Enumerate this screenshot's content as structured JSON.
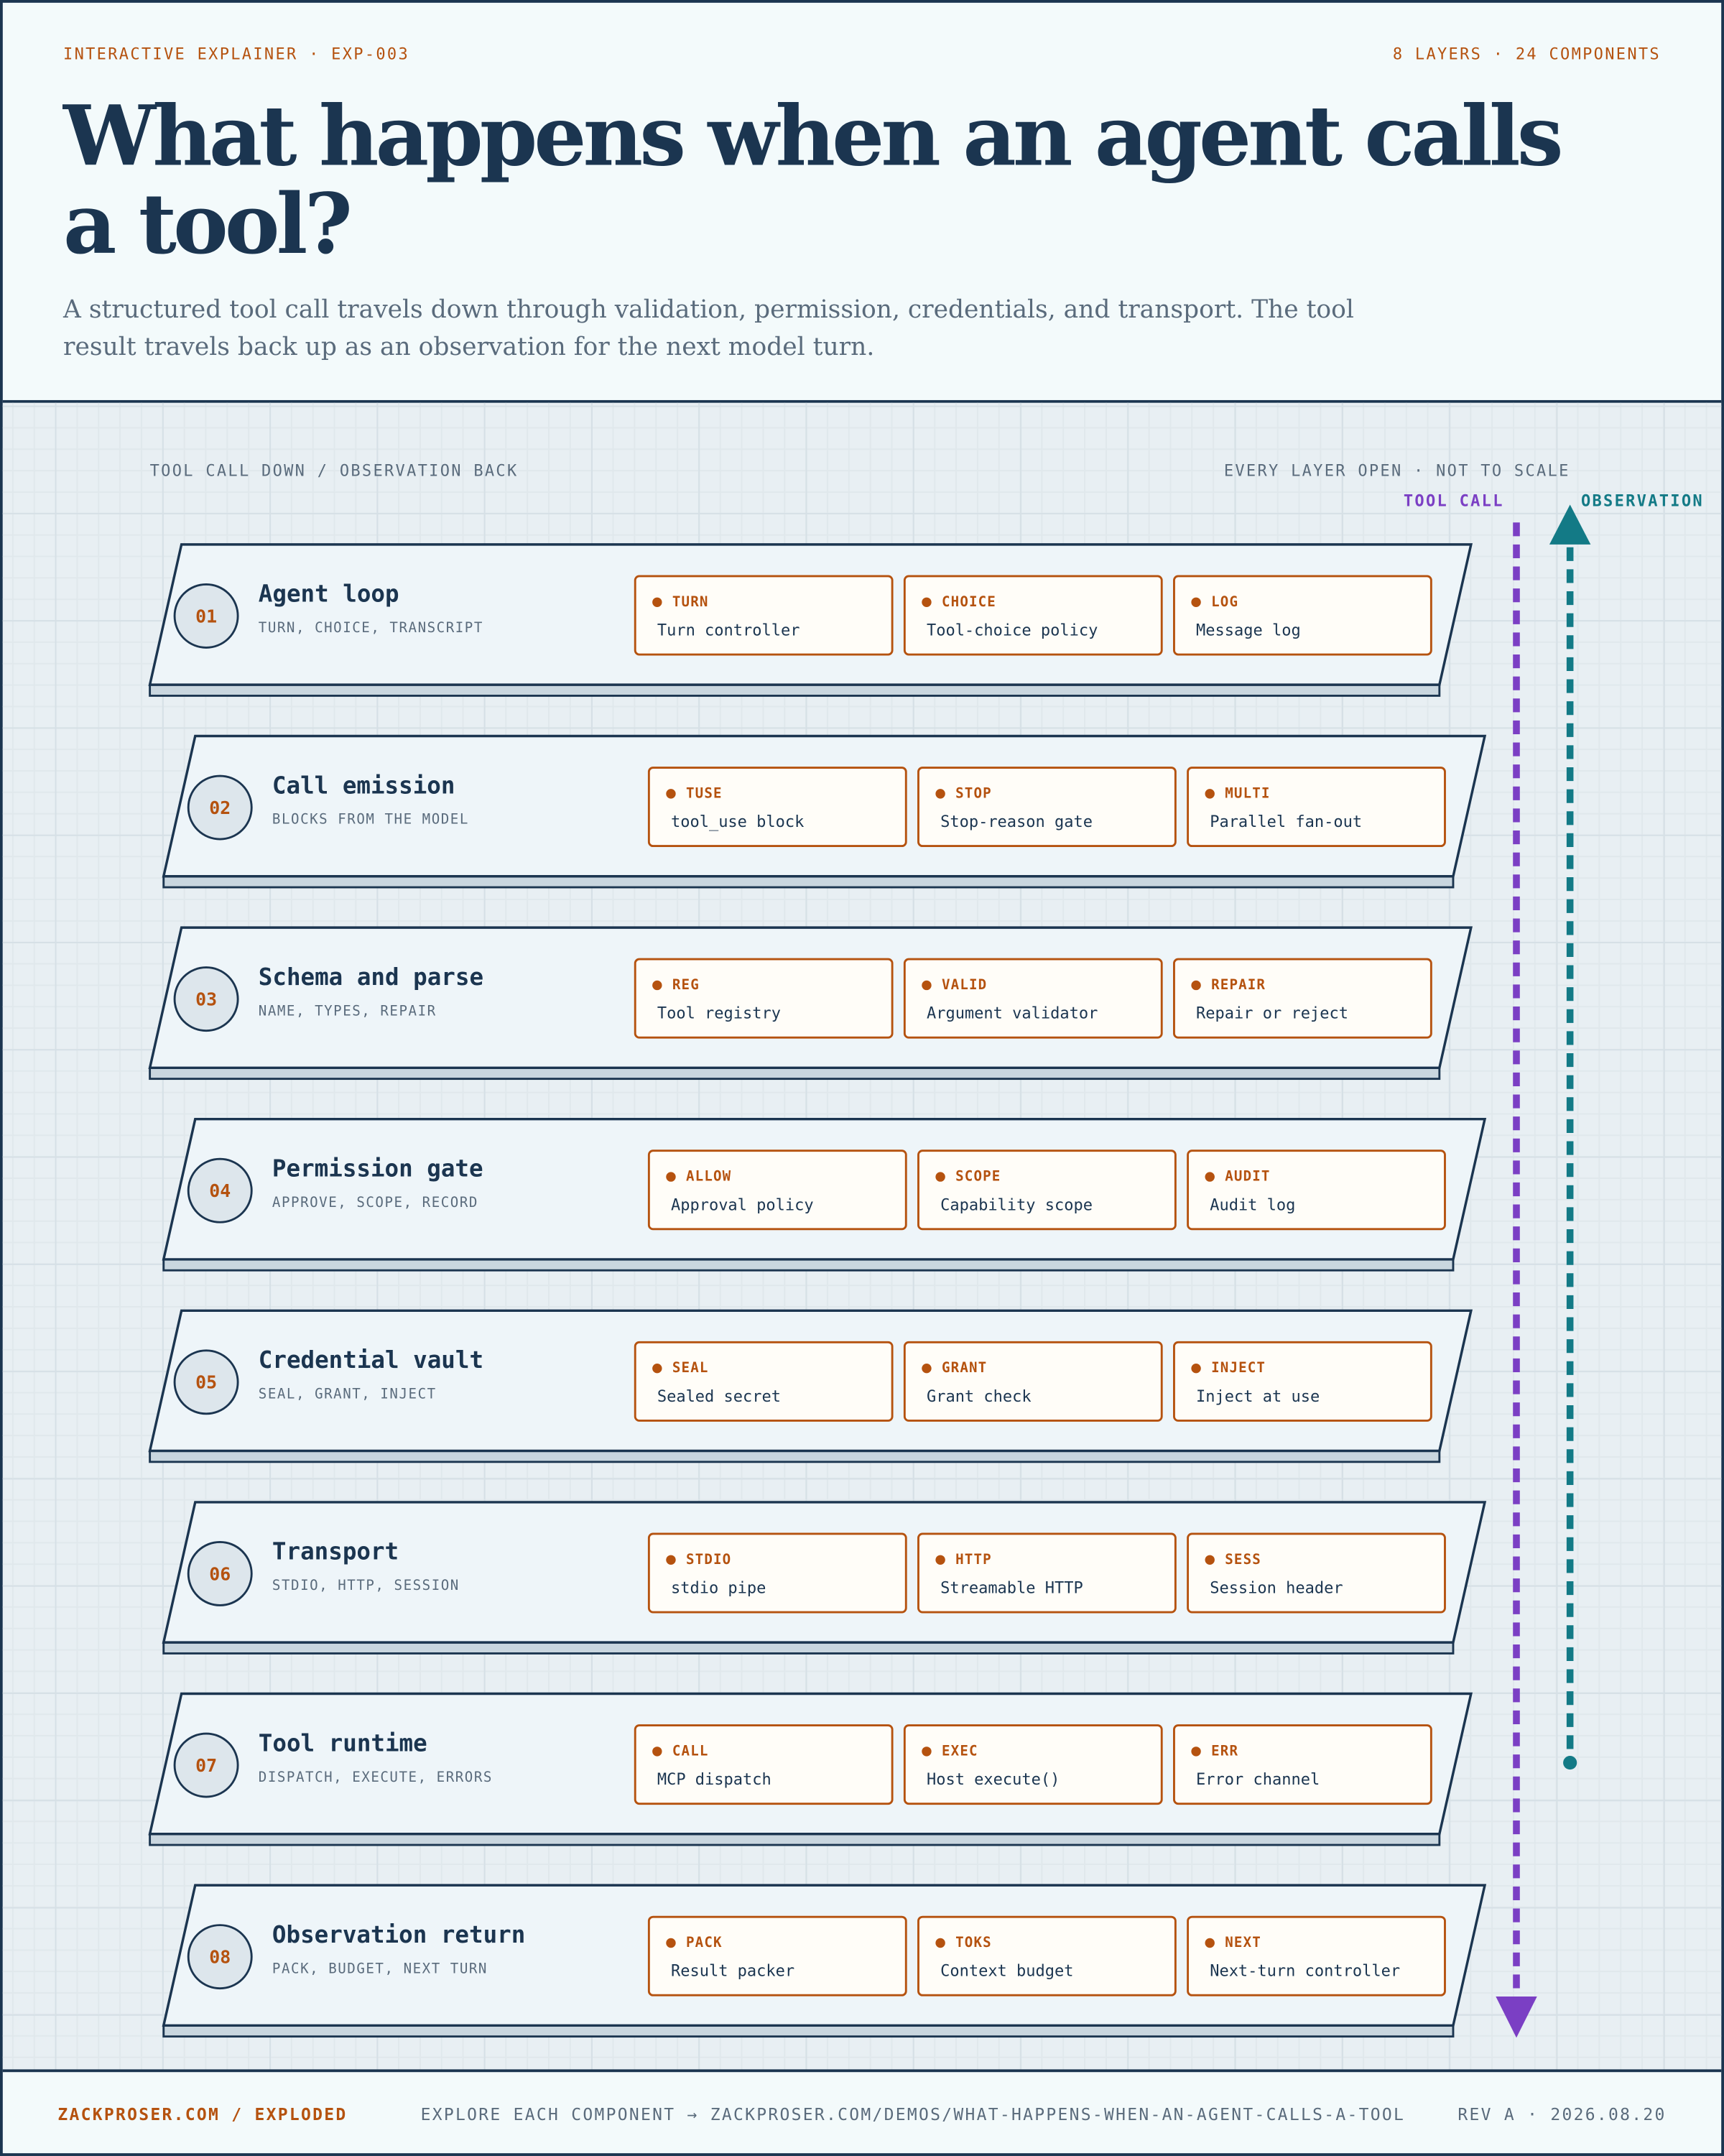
{
  "header": {
    "eyebrow": "INTERACTIVE EXPLAINER · EXP-003",
    "meta": "8 LAYERS · 24 COMPONENTS",
    "title": "What happens when an agent calls a tool?",
    "subtitle": "A structured tool call travels down through validation, permission, credentials, and transport. The tool result travels back up as an observation for the next model turn."
  },
  "diagram": {
    "left_label": "TOOL CALL DOWN / OBSERVATION BACK",
    "right_label": "EVERY LAYER OPEN · NOT TO SCALE",
    "tool_call_label": "TOOL CALL",
    "observation_label": "OBSERVATION",
    "layers": [
      {
        "number": "01",
        "name": "Agent loop",
        "subtitle": "TURN, CHOICE, TRANSCRIPT",
        "components": [
          {
            "tag": "TURN",
            "label": "Turn controller"
          },
          {
            "tag": "CHOICE",
            "label": "Tool-choice policy"
          },
          {
            "tag": "LOG",
            "label": "Message log"
          }
        ]
      },
      {
        "number": "02",
        "name": "Call emission",
        "subtitle": "BLOCKS FROM THE MODEL",
        "components": [
          {
            "tag": "TUSE",
            "label": "tool_use block"
          },
          {
            "tag": "STOP",
            "label": "Stop-reason gate"
          },
          {
            "tag": "MULTI",
            "label": "Parallel fan-out"
          }
        ]
      },
      {
        "number": "03",
        "name": "Schema and parse",
        "subtitle": "NAME, TYPES, REPAIR",
        "components": [
          {
            "tag": "REG",
            "label": "Tool registry"
          },
          {
            "tag": "VALID",
            "label": "Argument validator"
          },
          {
            "tag": "REPAIR",
            "label": "Repair or reject"
          }
        ]
      },
      {
        "number": "04",
        "name": "Permission gate",
        "subtitle": "APPROVE, SCOPE, RECORD",
        "components": [
          {
            "tag": "ALLOW",
            "label": "Approval policy"
          },
          {
            "tag": "SCOPE",
            "label": "Capability scope"
          },
          {
            "tag": "AUDIT",
            "label": "Audit log"
          }
        ]
      },
      {
        "number": "05",
        "name": "Credential vault",
        "subtitle": "SEAL, GRANT, INJECT",
        "components": [
          {
            "tag": "SEAL",
            "label": "Sealed secret"
          },
          {
            "tag": "GRANT",
            "label": "Grant check"
          },
          {
            "tag": "INJECT",
            "label": "Inject at use"
          }
        ]
      },
      {
        "number": "06",
        "name": "Transport",
        "subtitle": "STDIO, HTTP, SESSION",
        "components": [
          {
            "tag": "STDIO",
            "label": "stdio pipe"
          },
          {
            "tag": "HTTP",
            "label": "Streamable HTTP"
          },
          {
            "tag": "SESS",
            "label": "Session header"
          }
        ]
      },
      {
        "number": "07",
        "name": "Tool runtime",
        "subtitle": "DISPATCH, EXECUTE, ERRORS",
        "components": [
          {
            "tag": "CALL",
            "label": "MCP dispatch"
          },
          {
            "tag": "EXEC",
            "label": "Host execute()"
          },
          {
            "tag": "ERR",
            "label": "Error channel"
          }
        ]
      },
      {
        "number": "08",
        "name": "Observation return",
        "subtitle": "PACK, BUDGET, NEXT TURN",
        "components": [
          {
            "tag": "PACK",
            "label": "Result packer"
          },
          {
            "tag": "TOKS",
            "label": "Context budget"
          },
          {
            "tag": "NEXT",
            "label": "Next-turn controller"
          }
        ]
      }
    ]
  },
  "footer": {
    "left": "ZACKPROSER.COM / EXPLODED",
    "center": "EXPLORE EACH COMPONENT → ZACKPROSER.COM/DEMOS/WHAT-HAPPENS-WHEN-AN-AGENT-CALLS-A-TOOL",
    "right": "REV A · 2026.08.20"
  }
}
